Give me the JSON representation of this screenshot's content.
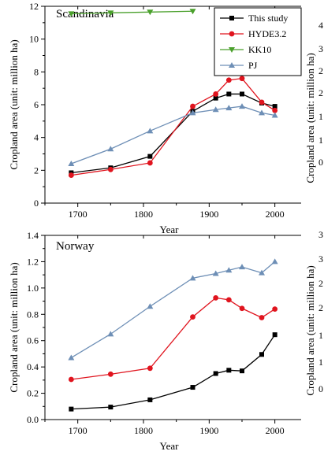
{
  "chart_data": [
    {
      "type": "line",
      "title": "Scandinavia",
      "xlabel": "Year",
      "ylabel": "Cropland area (unit: million ha)",
      "xlim": [
        1650,
        2040
      ],
      "ylim": [
        0,
        12
      ],
      "xticks": [
        1700,
        1800,
        1900,
        2000
      ],
      "yticks": [
        0,
        2,
        4,
        6,
        8,
        10,
        12
      ],
      "ytick_labels": [
        "0",
        "2",
        "4",
        "6",
        "8",
        "10",
        "12"
      ],
      "legend_position": "top-right",
      "series": [
        {
          "name": "This study",
          "color": "#000000",
          "marker": "square",
          "x": [
            1690,
            1750,
            1810,
            1875,
            1910,
            1930,
            1950,
            1980,
            2000
          ],
          "y": [
            1.85,
            2.15,
            2.85,
            5.6,
            6.4,
            6.65,
            6.65,
            6.1,
            5.9
          ]
        },
        {
          "name": "HYDE3.2",
          "color": "#e0141e",
          "marker": "circle",
          "x": [
            1690,
            1750,
            1810,
            1875,
            1910,
            1930,
            1950,
            1980,
            2000
          ],
          "y": [
            1.7,
            2.05,
            2.45,
            5.9,
            6.65,
            7.5,
            7.6,
            6.15,
            5.65
          ]
        },
        {
          "name": "KK10",
          "color": "#4aa02c",
          "marker": "triangle-down",
          "x": [
            1690,
            1750,
            1810,
            1875
          ],
          "y": [
            11.55,
            11.6,
            11.65,
            11.7
          ]
        },
        {
          "name": "PJ",
          "color": "#6e8fb6",
          "marker": "triangle-up",
          "x": [
            1690,
            1750,
            1810,
            1875,
            1910,
            1930,
            1950,
            1980,
            2000
          ],
          "y": [
            2.4,
            3.3,
            4.4,
            5.5,
            5.7,
            5.8,
            5.9,
            5.5,
            5.35
          ]
        }
      ]
    },
    {
      "type": "line",
      "title": "Norway",
      "xlabel": "Year",
      "ylabel": "Cropland area (unit: million ha)",
      "xlim": [
        1650,
        2040
      ],
      "ylim": [
        0,
        1.4
      ],
      "xticks": [
        1700,
        1800,
        1900,
        2000
      ],
      "yticks": [
        0,
        0.2,
        0.4,
        0.6,
        0.8,
        1.0,
        1.2,
        1.4
      ],
      "ytick_labels": [
        "0.0",
        "0.2",
        "0.4",
        "0.6",
        "0.8",
        "1.0",
        "1.2",
        "1.4"
      ],
      "series": [
        {
          "name": "This study",
          "color": "#000000",
          "marker": "square",
          "x": [
            1690,
            1750,
            1810,
            1875,
            1910,
            1930,
            1950,
            1980,
            2000
          ],
          "y": [
            0.08,
            0.095,
            0.15,
            0.245,
            0.35,
            0.375,
            0.37,
            0.495,
            0.645
          ]
        },
        {
          "name": "HYDE3.2",
          "color": "#e0141e",
          "marker": "circle",
          "x": [
            1690,
            1750,
            1810,
            1875,
            1910,
            1930,
            1950,
            1980,
            2000
          ],
          "y": [
            0.305,
            0.345,
            0.39,
            0.78,
            0.925,
            0.91,
            0.845,
            0.775,
            0.84
          ]
        },
        {
          "name": "PJ",
          "color": "#6e8fb6",
          "marker": "triangle-up",
          "x": [
            1690,
            1750,
            1810,
            1875,
            1910,
            1930,
            1950,
            1980,
            2000
          ],
          "y": [
            0.47,
            0.65,
            0.86,
            1.075,
            1.11,
            1.135,
            1.16,
            1.115,
            1.2
          ]
        }
      ]
    }
  ],
  "cropped_right": {
    "top_ylabel": "Cropland area (unit: million ha)",
    "top_ticks": [
      "4",
      "3",
      "2",
      "2",
      "1",
      "1",
      "0"
    ],
    "bottom_ylabel": "Cropland area (unit: million ha)",
    "bottom_ticks": [
      "3",
      "3",
      "2",
      "2",
      "1",
      "1",
      "0"
    ]
  }
}
